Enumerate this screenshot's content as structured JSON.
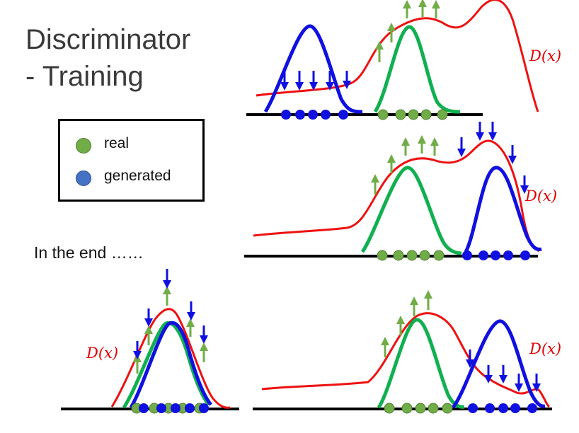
{
  "title": {
    "line1": "Discriminator",
    "line2": "- Training"
  },
  "legend": {
    "items": [
      {
        "label": "real",
        "color": "#70ad47"
      },
      {
        "label": "generated",
        "color": "#4472c4"
      }
    ]
  },
  "end_label": "In the end ……",
  "colors": {
    "real": "#70ad47",
    "generated": "#1010e0",
    "discriminator_curve": "#ee1111",
    "real_curve": "#10b050",
    "axis": "#000000"
  },
  "panels": [
    {
      "id": "panel-1",
      "curve_label": "D(x)"
    },
    {
      "id": "panel-2",
      "curve_label": "D(x)"
    },
    {
      "id": "panel-3",
      "curve_label": "D(x)"
    },
    {
      "id": "panel-4",
      "curve_label": "D(x)"
    }
  ]
}
